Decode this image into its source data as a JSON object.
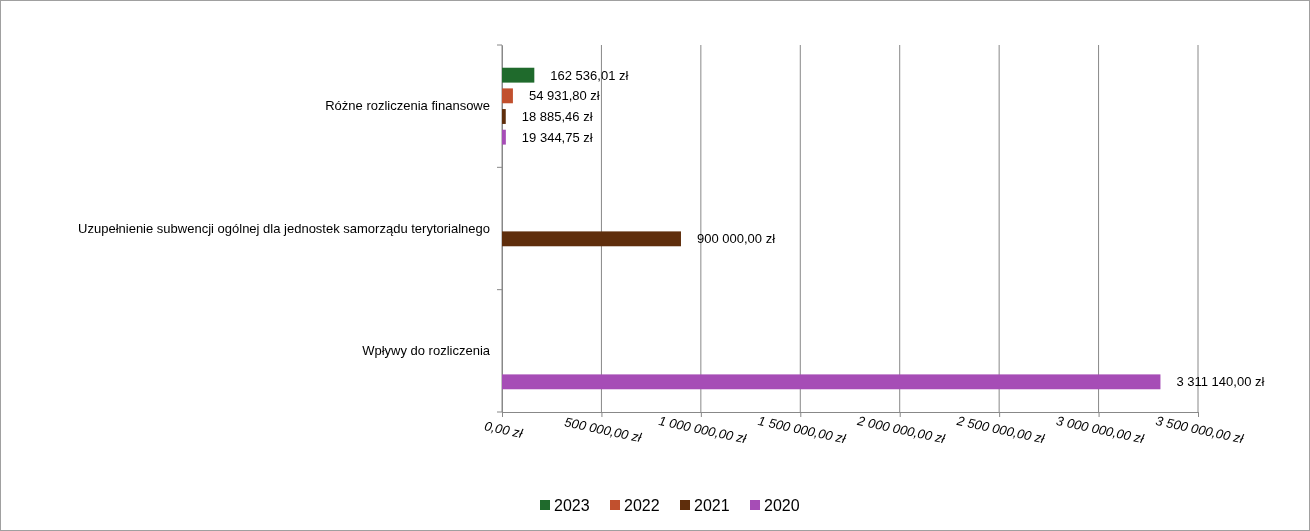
{
  "chart_data": {
    "type": "bar",
    "orientation": "horizontal",
    "categories": [
      "Różne rozliczenia finansowe",
      "Uzupełnienie subwencji ogólnej dla jednostek samorządu terytorialnego",
      "Wpływy do rozliczenia"
    ],
    "series": [
      {
        "name": "2023",
        "color": "#1f6a2c",
        "values": [
          162536.01,
          null,
          null
        ],
        "value_labels": [
          "162 536,01 zł",
          null,
          null
        ]
      },
      {
        "name": "2022",
        "color": "#c1502e",
        "values": [
          54931.8,
          null,
          null
        ],
        "value_labels": [
          "54 931,80 zł",
          null,
          null
        ]
      },
      {
        "name": "2021",
        "color": "#5f2e0c",
        "values": [
          18885.46,
          900000,
          null
        ],
        "value_labels": [
          "18 885,46 zł",
          "900 000,00 zł",
          null
        ]
      },
      {
        "name": "2020",
        "color": "#a64db6",
        "values": [
          19344.75,
          null,
          3311140
        ],
        "value_labels": [
          "19 344,75 zł",
          null,
          "3 311 140,00 zł"
        ]
      }
    ],
    "xlim": [
      0,
      3500000
    ],
    "xticks": [
      {
        "value": 0,
        "label": "0,00 zł"
      },
      {
        "value": 500000,
        "label": "500 000,00 zł"
      },
      {
        "value": 1000000,
        "label": "1 000 000,00 zł"
      },
      {
        "value": 1500000,
        "label": "1 500 000,00 zł"
      },
      {
        "value": 2000000,
        "label": "2 000 000,00 zł"
      },
      {
        "value": 2500000,
        "label": "2 500 000,00 zł"
      },
      {
        "value": 3000000,
        "label": "3 000 000,00 zł"
      },
      {
        "value": 3500000,
        "label": "3 500 000,00 zł"
      }
    ],
    "grid": "x",
    "legend": "bottom"
  }
}
